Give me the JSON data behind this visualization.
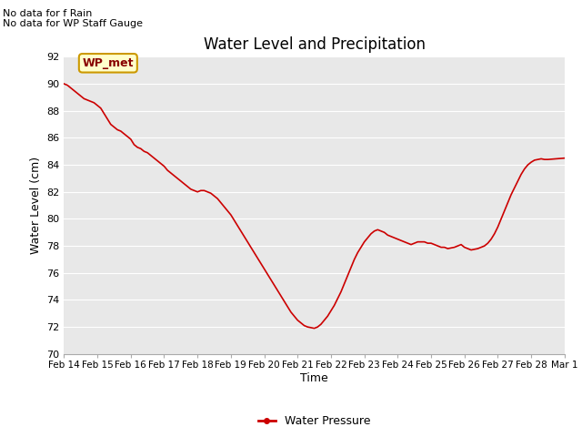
{
  "title": "Water Level and Precipitation",
  "xlabel": "Time",
  "ylabel": "Water Level (cm)",
  "ylim": [
    70,
    92
  ],
  "xlim": [
    0,
    15
  ],
  "line_color": "#cc0000",
  "legend_label": "Water Pressure",
  "annotation_text": "No data for f Rain\nNo data for WP Staff Gauge",
  "wp_met_label": "WP_met",
  "wp_met_bg": "#ffffcc",
  "wp_met_border": "#cc9900",
  "wp_met_text_color": "#880000",
  "background_color": "#e8e8e8",
  "xtick_labels": [
    "Feb 14",
    "Feb 15",
    "Feb 16",
    "Feb 17",
    "Feb 18",
    "Feb 19",
    "Feb 20",
    "Feb 21",
    "Feb 22",
    "Feb 23",
    "Feb 24",
    "Feb 25",
    "Feb 26",
    "Feb 27",
    "Feb 28",
    "Mar 1"
  ],
  "ytick_values": [
    70,
    72,
    74,
    76,
    78,
    80,
    82,
    84,
    86,
    88,
    90,
    92
  ],
  "x_data": [
    0.0,
    0.1,
    0.2,
    0.3,
    0.4,
    0.5,
    0.6,
    0.7,
    0.8,
    0.9,
    1.0,
    1.1,
    1.2,
    1.3,
    1.4,
    1.5,
    1.6,
    1.7,
    1.8,
    1.9,
    2.0,
    2.1,
    2.2,
    2.3,
    2.4,
    2.5,
    2.6,
    2.7,
    2.8,
    2.9,
    3.0,
    3.1,
    3.2,
    3.3,
    3.4,
    3.5,
    3.6,
    3.7,
    3.8,
    3.9,
    4.0,
    4.1,
    4.2,
    4.3,
    4.4,
    4.5,
    4.6,
    4.7,
    4.8,
    4.9,
    5.0,
    5.1,
    5.2,
    5.3,
    5.4,
    5.5,
    5.6,
    5.7,
    5.8,
    5.9,
    6.0,
    6.1,
    6.2,
    6.3,
    6.4,
    6.5,
    6.6,
    6.7,
    6.8,
    6.9,
    7.0,
    7.1,
    7.2,
    7.3,
    7.4,
    7.5,
    7.6,
    7.7,
    7.8,
    7.9,
    8.0,
    8.1,
    8.2,
    8.3,
    8.4,
    8.5,
    8.6,
    8.7,
    8.8,
    8.9,
    9.0,
    9.1,
    9.2,
    9.3,
    9.4,
    9.5,
    9.6,
    9.7,
    9.8,
    9.9,
    10.0,
    10.1,
    10.2,
    10.3,
    10.4,
    10.5,
    10.6,
    10.7,
    10.8,
    10.9,
    11.0,
    11.1,
    11.2,
    11.3,
    11.4,
    11.5,
    11.6,
    11.7,
    11.8,
    11.9,
    12.0,
    12.1,
    12.2,
    12.3,
    12.4,
    12.5,
    12.6,
    12.7,
    12.8,
    12.9,
    13.0,
    13.1,
    13.2,
    13.3,
    13.4,
    13.5,
    13.6,
    13.7,
    13.8,
    13.9,
    14.0,
    14.1,
    14.2,
    14.3,
    14.4,
    14.5,
    14.6,
    14.7,
    14.8,
    14.9,
    15.0
  ],
  "y_data": [
    90.0,
    89.9,
    89.7,
    89.5,
    89.3,
    89.1,
    88.9,
    88.8,
    88.7,
    88.6,
    88.4,
    88.2,
    87.8,
    87.4,
    87.0,
    86.8,
    86.6,
    86.5,
    86.3,
    86.1,
    85.9,
    85.5,
    85.3,
    85.2,
    85.0,
    84.9,
    84.7,
    84.5,
    84.3,
    84.1,
    83.9,
    83.6,
    83.4,
    83.2,
    83.0,
    82.8,
    82.6,
    82.4,
    82.2,
    82.1,
    82.0,
    82.1,
    82.1,
    82.0,
    81.9,
    81.7,
    81.5,
    81.2,
    80.9,
    80.6,
    80.3,
    79.9,
    79.5,
    79.1,
    78.7,
    78.3,
    77.9,
    77.5,
    77.1,
    76.7,
    76.3,
    75.9,
    75.5,
    75.1,
    74.7,
    74.3,
    73.9,
    73.5,
    73.1,
    72.8,
    72.5,
    72.3,
    72.1,
    72.0,
    71.95,
    71.9,
    72.0,
    72.2,
    72.5,
    72.8,
    73.2,
    73.6,
    74.1,
    74.6,
    75.2,
    75.8,
    76.4,
    77.0,
    77.5,
    77.9,
    78.3,
    78.6,
    78.9,
    79.1,
    79.2,
    79.1,
    79.0,
    78.8,
    78.7,
    78.6,
    78.5,
    78.4,
    78.3,
    78.2,
    78.1,
    78.2,
    78.3,
    78.3,
    78.3,
    78.2,
    78.2,
    78.1,
    78.0,
    77.9,
    77.9,
    77.8,
    77.85,
    77.9,
    78.0,
    78.1,
    77.9,
    77.8,
    77.7,
    77.75,
    77.8,
    77.9,
    78.0,
    78.2,
    78.5,
    78.9,
    79.4,
    80.0,
    80.6,
    81.2,
    81.8,
    82.3,
    82.8,
    83.3,
    83.7,
    84.0,
    84.2,
    84.35,
    84.4,
    84.45,
    84.4,
    84.4,
    84.42,
    84.44,
    84.46,
    84.48,
    84.5
  ]
}
